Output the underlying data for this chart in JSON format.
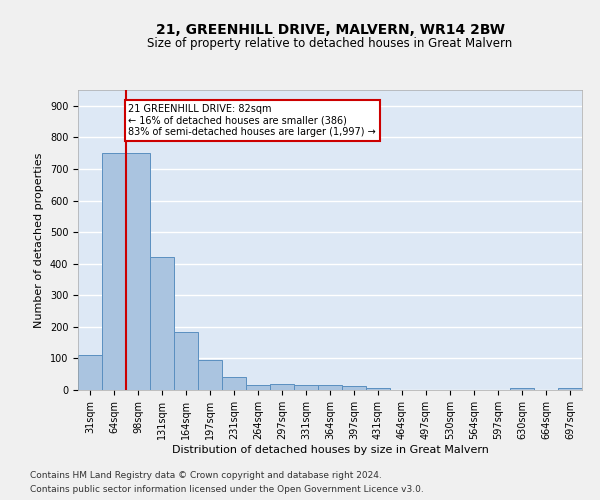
{
  "title": "21, GREENHILL DRIVE, MALVERN, WR14 2BW",
  "subtitle": "Size of property relative to detached houses in Great Malvern",
  "xlabel": "Distribution of detached houses by size in Great Malvern",
  "ylabel": "Number of detached properties",
  "categories": [
    "31sqm",
    "64sqm",
    "98sqm",
    "131sqm",
    "164sqm",
    "197sqm",
    "231sqm",
    "264sqm",
    "297sqm",
    "331sqm",
    "364sqm",
    "397sqm",
    "431sqm",
    "464sqm",
    "497sqm",
    "530sqm",
    "564sqm",
    "597sqm",
    "630sqm",
    "664sqm",
    "697sqm"
  ],
  "values": [
    110,
    750,
    750,
    420,
    185,
    95,
    40,
    17,
    20,
    15,
    15,
    12,
    6,
    0,
    0,
    0,
    0,
    0,
    6,
    0,
    6
  ],
  "bar_color": "#aac4e0",
  "bar_edge_color": "#5a8fc0",
  "vline_x": 1.5,
  "vline_color": "#cc0000",
  "annotation_text": "21 GREENHILL DRIVE: 82sqm\n← 16% of detached houses are smaller (386)\n83% of semi-detached houses are larger (1,997) →",
  "annotation_box_color": "#ffffff",
  "annotation_box_edge": "#cc0000",
  "ylim": [
    0,
    950
  ],
  "yticks": [
    0,
    100,
    200,
    300,
    400,
    500,
    600,
    700,
    800,
    900
  ],
  "footer1": "Contains HM Land Registry data © Crown copyright and database right 2024.",
  "footer2": "Contains public sector information licensed under the Open Government Licence v3.0.",
  "background_color": "#dde8f5",
  "grid_color": "#ffffff",
  "title_fontsize": 10,
  "subtitle_fontsize": 8.5,
  "axis_label_fontsize": 8,
  "tick_fontsize": 7,
  "footer_fontsize": 6.5
}
